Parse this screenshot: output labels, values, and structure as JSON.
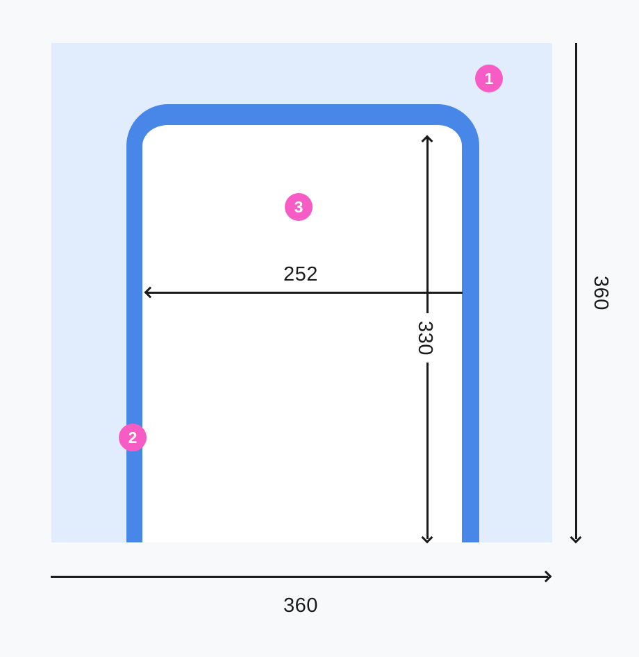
{
  "diagram": {
    "badges": [
      {
        "label": "1"
      },
      {
        "label": "2"
      },
      {
        "label": "3"
      }
    ],
    "dimensions": {
      "frame_inner_width": "252",
      "frame_inner_height": "330",
      "canvas_height": "360",
      "canvas_width": "360"
    },
    "colors": {
      "page_background": "#f8f9fa",
      "canvas_fill": "#e1ecfd",
      "frame_stroke": "#4886e8",
      "frame_fill": "#ffffff",
      "badge_fill": "#f75cc5",
      "badge_text": "#ffffff",
      "dimension_line": "#1a1a1a"
    }
  }
}
